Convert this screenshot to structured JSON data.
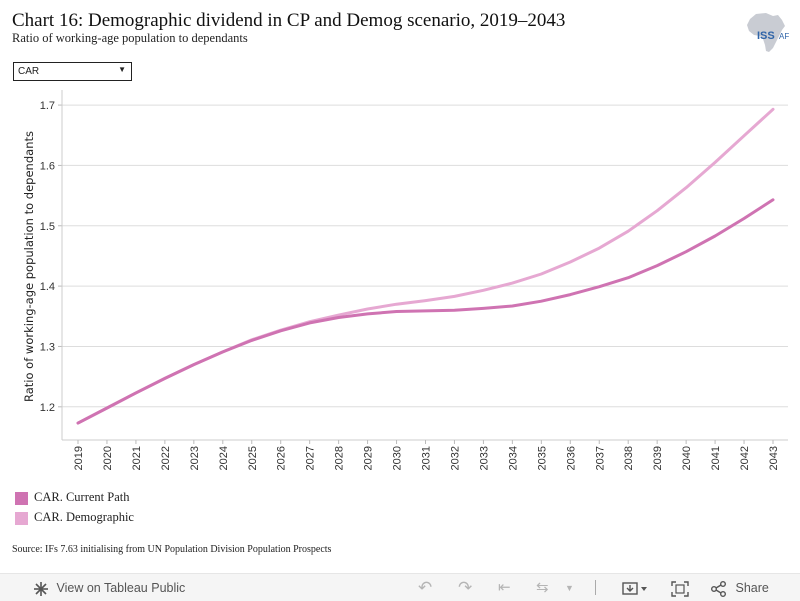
{
  "header": {
    "title": "Chart 16: Demographic dividend in CP and Demog scenario, 2019–2043",
    "subtitle": "Ratio of working-age population to dependants",
    "logo_text": "ISS AFRICA"
  },
  "filter": {
    "selected": "CAR"
  },
  "colors": {
    "current_path": "#cf73b2",
    "demographic": "#e6a8d2"
  },
  "chart_data": {
    "type": "line",
    "title": "Chart 16: Demographic dividend in CP and Demog scenario, 2019–2043",
    "ylabel": "Ratio of working-age population to dependants",
    "xlabel": "",
    "ylim": [
      1.145,
      1.72
    ],
    "yticks": [
      "1.2",
      "1.3",
      "1.4",
      "1.5",
      "1.6",
      "1.7"
    ],
    "x": [
      "2019",
      "2020",
      "2021",
      "2022",
      "2023",
      "2024",
      "2025",
      "2026",
      "2027",
      "2028",
      "2029",
      "2030",
      "2031",
      "2032",
      "2033",
      "2034",
      "2035",
      "2036",
      "2037",
      "2038",
      "2039",
      "2040",
      "2041",
      "2042",
      "2043"
    ],
    "series": [
      {
        "name": "CAR. Current Path",
        "values": [
          1.173,
          1.198,
          1.223,
          1.247,
          1.27,
          1.291,
          1.31,
          1.326,
          1.339,
          1.348,
          1.354,
          1.358,
          1.359,
          1.36,
          1.363,
          1.367,
          1.375,
          1.386,
          1.399,
          1.414,
          1.434,
          1.457,
          1.483,
          1.512,
          1.543
        ]
      },
      {
        "name": "CAR. Demographic",
        "values": [
          1.173,
          1.198,
          1.223,
          1.247,
          1.27,
          1.291,
          1.311,
          1.327,
          1.341,
          1.352,
          1.362,
          1.37,
          1.376,
          1.383,
          1.393,
          1.405,
          1.42,
          1.44,
          1.463,
          1.491,
          1.525,
          1.563,
          1.605,
          1.649,
          1.693
        ]
      }
    ],
    "grid": true,
    "legend_position": "bottom-left"
  },
  "legend": {
    "items": [
      {
        "label": "CAR. Current Path"
      },
      {
        "label": "CAR. Demographic"
      }
    ]
  },
  "source": "Source: IFs 7.63 initialising from UN Population Division Population Prospects",
  "toolbar": {
    "view_label": "View on Tableau Public",
    "share_label": "Share"
  }
}
